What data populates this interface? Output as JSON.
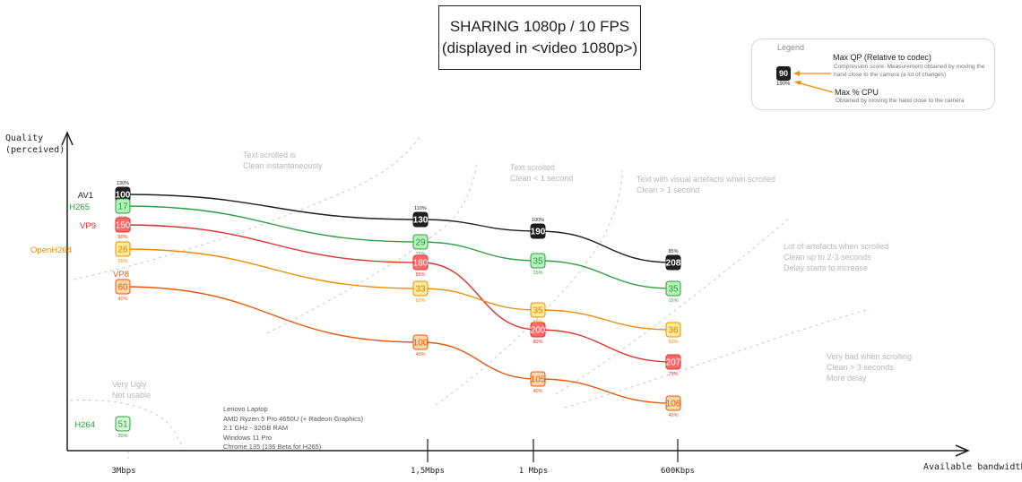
{
  "chart_data": {
    "type": "line",
    "title": "SHARING 1080p / 10 FPS",
    "subtitle": "(displayed in <video 1080p>)",
    "xlabel": "Available bandwidth",
    "ylabel": "Quality\n(perceived)",
    "categories": [
      "3Mbps",
      "1,5Mbps",
      "1 Mbps",
      "600Kbps"
    ],
    "series": [
      {
        "name": "AV1",
        "color": "#1e1e1e",
        "qp": [
          100,
          130,
          190,
          208
        ],
        "cpu": [
          "130%",
          "110%",
          "100%",
          "85%"
        ],
        "quality": [
          217,
          245,
          258,
          293
        ]
      },
      {
        "name": "H265",
        "color": "#2f9e44",
        "qp": [
          17,
          29,
          35,
          35
        ],
        "cpu": [
          "15%",
          "15%",
          "15%",
          "15%"
        ],
        "quality": [
          230,
          270,
          291,
          322
        ]
      },
      {
        "name": "VP9",
        "color": "#e03131",
        "qp": [
          150,
          180,
          200,
          207
        ],
        "cpu": [
          "90%",
          "85%",
          "80%",
          "75%"
        ],
        "quality": [
          251,
          293,
          368,
          404
        ]
      },
      {
        "name": "OpenH264",
        "color": "#f08c00",
        "qp": [
          26,
          33,
          35,
          36
        ],
        "cpu": [
          "65%",
          "62%",
          "55%",
          "50%"
        ],
        "quality": [
          278,
          322,
          346,
          368
        ]
      },
      {
        "name": "VP8",
        "color": "#e8590c",
        "qp": [
          60,
          100,
          105,
          106
        ],
        "cpu": [
          "40%",
          "40%",
          "40%",
          "40%"
        ],
        "quality": [
          320,
          382,
          423,
          450
        ]
      },
      {
        "name": "H264",
        "color": "#2f9e44",
        "qp": [
          51
        ],
        "cpu": [
          "30%"
        ],
        "quality": [
          473
        ]
      }
    ],
    "zones": [
      [
        "Text scrolled is",
        "Clean instantaneously"
      ],
      [
        "Text scrolled",
        "Clean < 1 second"
      ],
      [
        "Text with visual artefacts when scrolled",
        "Clean > 1 second"
      ],
      [
        "Lot of artefacts when scrolled",
        "Clean up to 2-3 seconds",
        "Delay starts to increase"
      ],
      [
        "Very bad when scrolling",
        "Clean > 3 seconds",
        "More delay"
      ],
      [
        "Very Ugly",
        "Not usable"
      ]
    ],
    "legend_position": "top-right",
    "grid": false
  },
  "legend": {
    "title": "Legend",
    "sample_value": "90",
    "sample_cpu": "190%",
    "qp_title": "Max QP (Relative to codec)",
    "qp_desc": "Compression score. Measurement obtained by moving the hand close  to the camera (a lot of changes)",
    "cpu_title": "Max % CPU",
    "cpu_desc": "Obtained by moving the hand close to the camera"
  },
  "laptop": {
    "lines": [
      "Lenovo Laptop",
      "AMD Ryzen 5 Pro 4650U (+ Radeon Graphics)",
      "2.1 GHz - 32GB RAM",
      "Windows 11 Pro",
      "Chrome 135 (136  Beta for H265)"
    ]
  },
  "colors": {
    "av1": "#1e1e1e",
    "h265": "#2f9e44",
    "vp9": "#e03131",
    "openh264": "#f08c00",
    "vp8": "#e8590c",
    "arrow": "#f08c00",
    "zone_text": "#b8b8b8"
  }
}
